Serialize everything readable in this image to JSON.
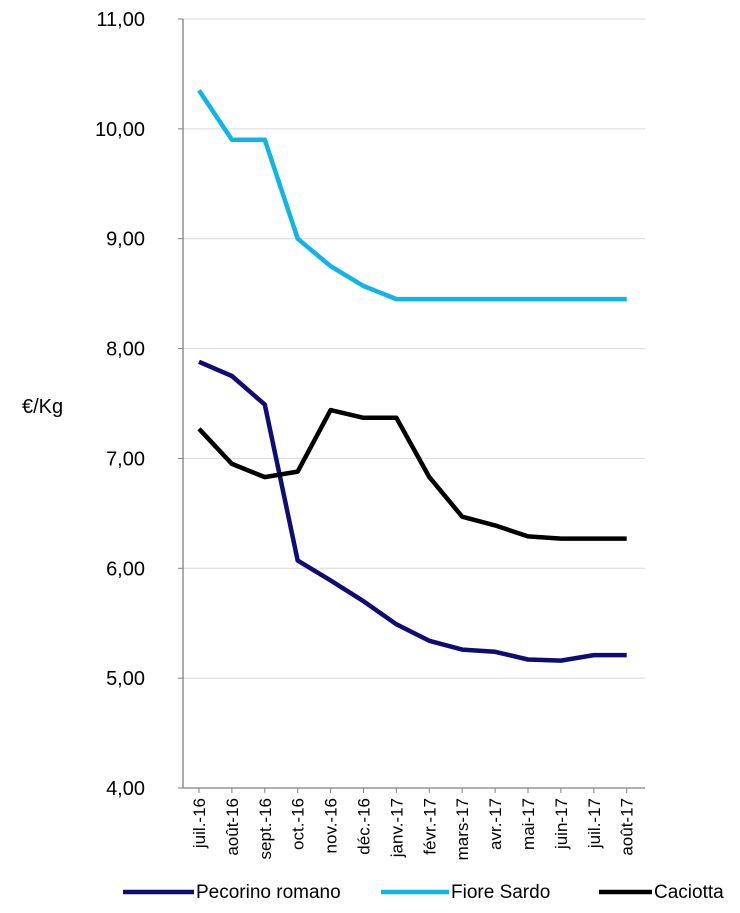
{
  "chart_data": {
    "type": "line",
    "title": "",
    "xlabel": "",
    "ylabel": "€/Kg",
    "ylim": [
      4,
      11
    ],
    "y_ticks": [
      "4,00",
      "5,00",
      "6,00",
      "7,00",
      "8,00",
      "9,00",
      "10,00",
      "11,00"
    ],
    "categories": [
      "juil.-16",
      "août-16",
      "sept.-16",
      "oct.-16",
      "nov.-16",
      "déc.-16",
      "janv.-17",
      "févr.-17",
      "mars-17",
      "avr.-17",
      "mai-17",
      "juin-17",
      "juil.-17",
      "août-17"
    ],
    "grid": "horizontal",
    "legend": "bottom",
    "series": [
      {
        "name": "Pecorino romano",
        "color": "#0d0d73",
        "values": [
          7.88,
          7.75,
          7.49,
          6.07,
          5.89,
          5.7,
          5.49,
          5.34,
          5.26,
          5.24,
          5.17,
          5.16,
          5.21,
          5.21
        ]
      },
      {
        "name": "Fiore Sardo",
        "color": "#0fb4eb",
        "values": [
          10.35,
          9.9,
          9.9,
          9.0,
          8.75,
          8.57,
          8.45,
          8.45,
          8.45,
          8.45,
          8.45,
          8.45,
          8.45,
          8.45
        ]
      },
      {
        "name": "Caciotta",
        "color": "#000000",
        "values": [
          7.27,
          6.95,
          6.83,
          6.88,
          7.44,
          7.37,
          7.37,
          6.83,
          6.47,
          6.39,
          6.29,
          6.27,
          6.27,
          6.27
        ]
      }
    ]
  }
}
